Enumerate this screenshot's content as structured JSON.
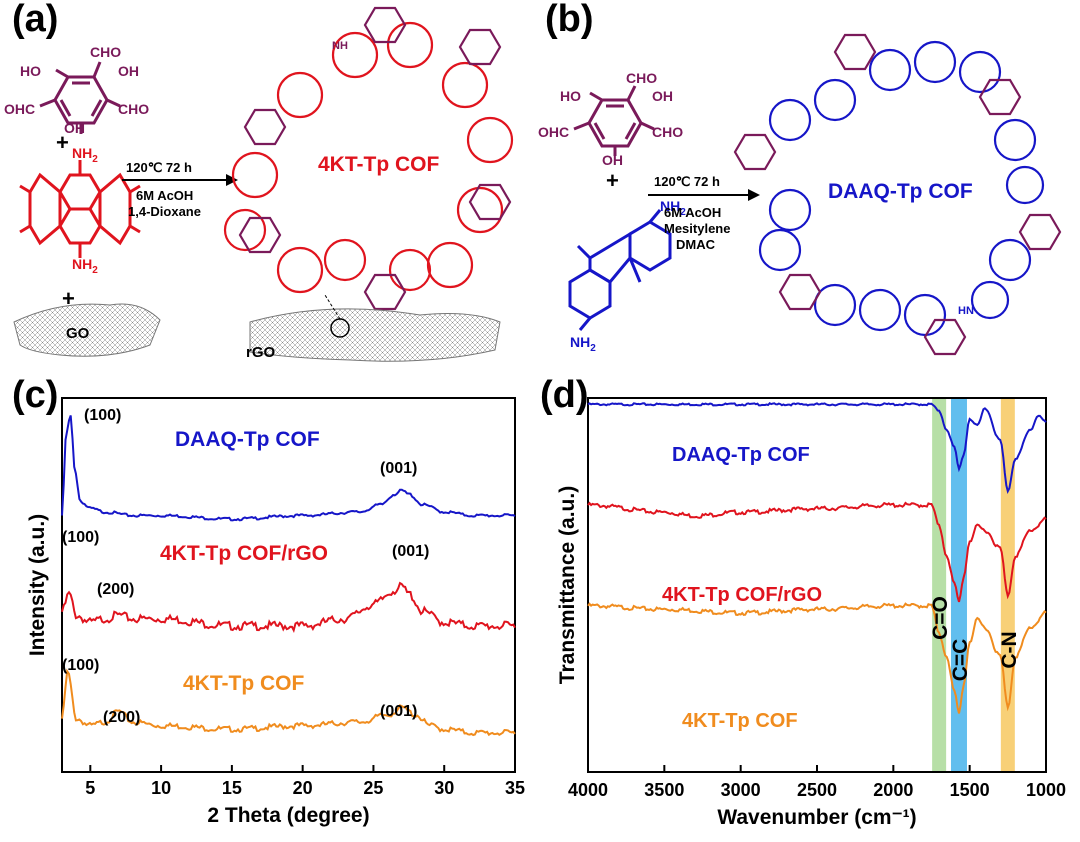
{
  "panels": {
    "a": {
      "label": "(a)",
      "reagents": {
        "top_groups": [
          "CHO",
          "HO",
          "OH",
          "OHC",
          "CHO",
          "OH"
        ],
        "amine_top": "NH",
        "amine_sub": "2",
        "amine_bottom": "NH",
        "plus": "+",
        "go": "GO"
      },
      "conditions": [
        "120℃ 72 h",
        "6M AcOH",
        "1,4-Dioxane"
      ],
      "product": "4KT-Tp COF",
      "substrate": "rGO",
      "linker_nh": "NH"
    },
    "b": {
      "label": "(b)",
      "reagents": {
        "top_groups": [
          "CHO",
          "HO",
          "OH",
          "OHC",
          "CHO",
          "OH"
        ],
        "amine": "NH",
        "amine_sub": "2",
        "plus": "+"
      },
      "conditions": [
        "120℃ 72 h",
        "6M AcOH",
        "Mesitylene",
        "DMAC"
      ],
      "product": "DAAQ-Tp COF",
      "linker_nh": "HN"
    },
    "c": {
      "label": "(c)"
    },
    "d": {
      "label": "(d)"
    }
  },
  "colors": {
    "red": "#e0141e",
    "blue": "#1616c8",
    "purple": "#7a1a5a",
    "orange": "#f08c1e",
    "black": "#000000",
    "green_band": "#9fd48a",
    "blue_band": "#2ea8e8",
    "yellow_band": "#f5c04a"
  },
  "chart_data": [
    {
      "type": "line",
      "xlabel": "2 Theta (degree)",
      "ylabel": "Intensity (a.u.)",
      "xlim": [
        3,
        35
      ],
      "xticks": [
        "5",
        "10",
        "15",
        "20",
        "25",
        "30",
        "35"
      ],
      "series": [
        {
          "name": "DAAQ-Tp COF",
          "color": "#1616c8",
          "x": [
            3,
            3.3,
            3.6,
            3.9,
            4.3,
            5,
            6,
            8,
            10,
            15,
            20,
            24,
            25.5,
            26.5,
            27,
            27.5,
            28.5,
            30,
            32,
            35
          ],
          "y": [
            0.72,
            0.95,
            1.0,
            0.85,
            0.76,
            0.74,
            0.73,
            0.72,
            0.72,
            0.71,
            0.72,
            0.73,
            0.75,
            0.78,
            0.79,
            0.78,
            0.75,
            0.73,
            0.72,
            0.72
          ]
        },
        {
          "name": "4KT-Tp COF/rGO",
          "color": "#e0141e",
          "x": [
            3,
            3.5,
            4,
            5,
            6,
            7,
            8,
            10,
            15,
            20,
            23,
            25,
            26.5,
            27,
            27.5,
            28.5,
            30,
            32,
            35
          ],
          "y": [
            0.45,
            0.5,
            0.44,
            0.42,
            0.43,
            0.44,
            0.43,
            0.43,
            0.41,
            0.41,
            0.43,
            0.47,
            0.51,
            0.52,
            0.5,
            0.45,
            0.42,
            0.41,
            0.41
          ]
        },
        {
          "name": "4KT-Tp COF",
          "color": "#f08c1e",
          "x": [
            3,
            3.4,
            4,
            5,
            6,
            7,
            8,
            10,
            15,
            20,
            24,
            26,
            27,
            28,
            29,
            30,
            32,
            35
          ],
          "y": [
            0.15,
            0.28,
            0.15,
            0.13,
            0.14,
            0.17,
            0.14,
            0.13,
            0.12,
            0.13,
            0.14,
            0.16,
            0.18,
            0.16,
            0.13,
            0.12,
            0.11,
            0.11
          ]
        }
      ],
      "annotations": [
        {
          "text": "(100)",
          "series": "DAAQ-Tp COF"
        },
        {
          "text": "(001)",
          "series": "DAAQ-Tp COF"
        },
        {
          "text": "(100)",
          "series": "4KT-Tp COF/rGO"
        },
        {
          "text": "(200)",
          "series": "4KT-Tp COF/rGO"
        },
        {
          "text": "(001)",
          "series": "4KT-Tp COF/rGO"
        },
        {
          "text": "(100)",
          "series": "4KT-Tp COF"
        },
        {
          "text": "(200)",
          "series": "4KT-Tp COF"
        },
        {
          "text": "(001)",
          "series": "4KT-Tp COF"
        }
      ],
      "labels": [
        "DAAQ-Tp COF",
        "4KT-Tp COF/rGO",
        "4KT-Tp COF"
      ]
    },
    {
      "type": "line",
      "xlabel": "Wavenumber (cm⁻¹)",
      "ylabel": "Transmittance (a.u.)",
      "xlim": [
        4000,
        1000
      ],
      "xticks": [
        "4000",
        "3500",
        "3000",
        "2500",
        "2000",
        "1500",
        "1000"
      ],
      "bands": [
        {
          "label": "C=O",
          "center": 1700
        },
        {
          "label": "C=C",
          "center": 1570
        },
        {
          "label": "C-N",
          "center": 1250
        }
      ],
      "series": [
        {
          "name": "DAAQ-Tp COF",
          "color": "#1616c8",
          "x": [
            4000,
            3500,
            3000,
            2500,
            2000,
            1750,
            1700,
            1650,
            1600,
            1570,
            1540,
            1500,
            1450,
            1400,
            1300,
            1250,
            1200,
            1100,
            1050,
            1000
          ],
          "y": [
            1.0,
            1.0,
            1.0,
            1.0,
            1.0,
            1.0,
            0.98,
            0.93,
            0.88,
            0.82,
            0.86,
            0.96,
            0.94,
            0.99,
            0.9,
            0.76,
            0.85,
            0.93,
            0.97,
            0.95
          ]
        },
        {
          "name": "4KT-Tp COF/rGO",
          "color": "#e0141e",
          "x": [
            4000,
            3500,
            3300,
            3000,
            2500,
            2000,
            1750,
            1700,
            1650,
            1600,
            1570,
            1540,
            1500,
            1450,
            1400,
            1300,
            1250,
            1200,
            1100,
            1000
          ],
          "y": [
            0.72,
            0.7,
            0.69,
            0.7,
            0.71,
            0.72,
            0.72,
            0.66,
            0.58,
            0.5,
            0.45,
            0.52,
            0.62,
            0.66,
            0.65,
            0.6,
            0.47,
            0.58,
            0.65,
            0.68
          ]
        },
        {
          "name": "4KT-Tp COF",
          "color": "#f08c1e",
          "x": [
            4000,
            3500,
            3000,
            2500,
            2000,
            1750,
            1700,
            1650,
            1600,
            1570,
            1540,
            1500,
            1450,
            1400,
            1300,
            1250,
            1200,
            1100,
            1000
          ],
          "y": [
            0.44,
            0.43,
            0.42,
            0.43,
            0.44,
            0.44,
            0.36,
            0.3,
            0.2,
            0.14,
            0.22,
            0.34,
            0.4,
            0.38,
            0.3,
            0.16,
            0.3,
            0.38,
            0.42
          ]
        }
      ],
      "labels": [
        "DAAQ-Tp COF",
        "4KT-Tp COF/rGO",
        "4KT-Tp COF"
      ]
    }
  ]
}
